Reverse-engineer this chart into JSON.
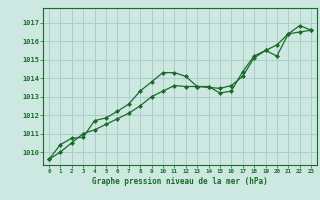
{
  "xlabel": "Graphe pression niveau de la mer (hPa)",
  "bg_color": "#cce8e0",
  "grid_color": "#aacfc8",
  "line_color": "#1a6b2a",
  "marker_color": "#1a6b2a",
  "xlim": [
    -0.5,
    23.5
  ],
  "ylim": [
    1009.3,
    1017.8
  ],
  "yticks": [
    1010,
    1011,
    1012,
    1013,
    1014,
    1015,
    1016,
    1017
  ],
  "xticks": [
    0,
    1,
    2,
    3,
    4,
    5,
    6,
    7,
    8,
    9,
    10,
    11,
    12,
    13,
    14,
    15,
    16,
    17,
    18,
    19,
    20,
    21,
    22,
    23
  ],
  "series1_x": [
    0,
    1,
    2,
    3,
    4,
    5,
    6,
    7,
    8,
    9,
    10,
    11,
    12,
    13,
    14,
    15,
    16,
    17,
    18,
    19,
    20,
    21,
    22,
    23
  ],
  "series1_y": [
    1009.6,
    1010.4,
    1010.75,
    1010.8,
    1011.7,
    1011.85,
    1012.2,
    1012.6,
    1013.3,
    1013.8,
    1014.3,
    1014.3,
    1014.1,
    1013.55,
    1013.55,
    1013.2,
    1013.3,
    1014.35,
    1015.2,
    1015.5,
    1015.2,
    1016.4,
    1016.85,
    1016.6
  ],
  "series2_x": [
    0,
    1,
    2,
    3,
    4,
    5,
    6,
    7,
    8,
    9,
    10,
    11,
    12,
    13,
    14,
    15,
    16,
    17,
    18,
    19,
    20,
    21,
    22,
    23
  ],
  "series2_y": [
    1009.6,
    1010.0,
    1010.5,
    1011.0,
    1011.2,
    1011.5,
    1011.8,
    1012.1,
    1012.5,
    1013.0,
    1013.3,
    1013.6,
    1013.55,
    1013.55,
    1013.5,
    1013.45,
    1013.6,
    1014.1,
    1015.1,
    1015.5,
    1015.8,
    1016.4,
    1016.5,
    1016.6
  ],
  "xlabel_fontsize": 5.5,
  "ytick_fontsize": 5.0,
  "xtick_fontsize": 4.2
}
